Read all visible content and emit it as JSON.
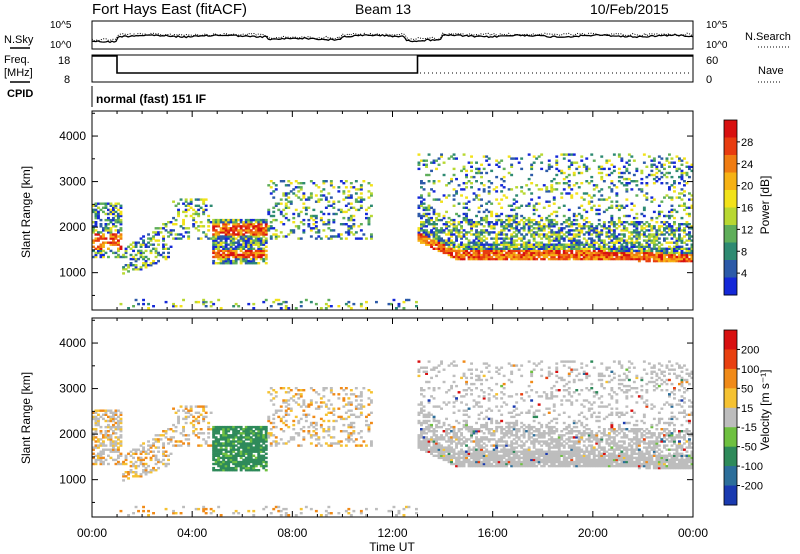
{
  "header": {
    "station": "Fort Hays East (fitACF)",
    "beam": "Beam 13",
    "date": "10/Feb/2015"
  },
  "panels": {
    "nsky_label": "N.Sky",
    "nsearch_label": "N.Search",
    "nsky_ticks": [
      "10^5",
      "10^0"
    ],
    "nsearch_ticks": [
      "10^5",
      "10^0"
    ],
    "freq_label_1": "Freq.",
    "freq_label_2": "[MHz]",
    "freq_ticks": [
      "18",
      "8"
    ],
    "nave_label": "Nave",
    "nave_ticks": [
      "60",
      "0"
    ],
    "cpid_label": "CPID",
    "cpid_text": "normal (fast) 151 IF"
  },
  "colorbars": {
    "power": {
      "label": "Power [dB]",
      "ticks": [
        "28",
        "24",
        "20",
        "16",
        "12",
        "8",
        "4"
      ],
      "colors": [
        "#1428d8",
        "#2c5aa8",
        "#2e8a72",
        "#5fae5a",
        "#b8d832",
        "#f2e21a",
        "#f6b214",
        "#f07c12",
        "#e83c10",
        "#d81010"
      ]
    },
    "velocity": {
      "label": "Velocity [m s⁻¹]",
      "ticks": [
        "200",
        "100",
        "50",
        "15",
        "-15",
        "-50",
        "-100",
        "-200"
      ],
      "colors": [
        "#1a3ab0",
        "#2c6e9a",
        "#2e8a5a",
        "#6ec040",
        "#bdbdbd",
        "#f5c232",
        "#f08a18",
        "#e84010",
        "#d81010"
      ]
    }
  },
  "chart_data": [
    {
      "type": "heatmap",
      "name": "power",
      "ylabel": "Slant Range [km]",
      "xlabel": "Time UT",
      "x_ticks": [
        "00:00",
        "04:00",
        "08:00",
        "12:00",
        "16:00",
        "20:00",
        "00:00"
      ],
      "y_ticks": [
        1000,
        2000,
        3000,
        4000
      ],
      "xlim_hours": [
        0,
        24
      ],
      "ylim_km": [
        180,
        4550
      ],
      "colorbar": "Power [dB]",
      "zlim_db": [
        0,
        30
      ]
    },
    {
      "type": "heatmap",
      "name": "velocity",
      "ylabel": "Slant Range [km]",
      "xlabel": "Time UT",
      "x_ticks": [
        "00:00",
        "04:00",
        "08:00",
        "12:00",
        "16:00",
        "20:00",
        "00:00"
      ],
      "y_ticks": [
        1000,
        2000,
        3000,
        4000
      ],
      "xlim_hours": [
        0,
        24
      ],
      "ylim_km": [
        180,
        4550
      ],
      "colorbar": "Velocity [m s⁻¹]",
      "zlim_ms": [
        -250,
        250
      ]
    }
  ],
  "frequency_series": {
    "type": "line",
    "x_hours": [
      0,
      1,
      1,
      13,
      13,
      24
    ],
    "y_mhz": [
      18,
      18,
      8,
      8,
      18,
      18
    ],
    "ylim": [
      8,
      18
    ]
  }
}
